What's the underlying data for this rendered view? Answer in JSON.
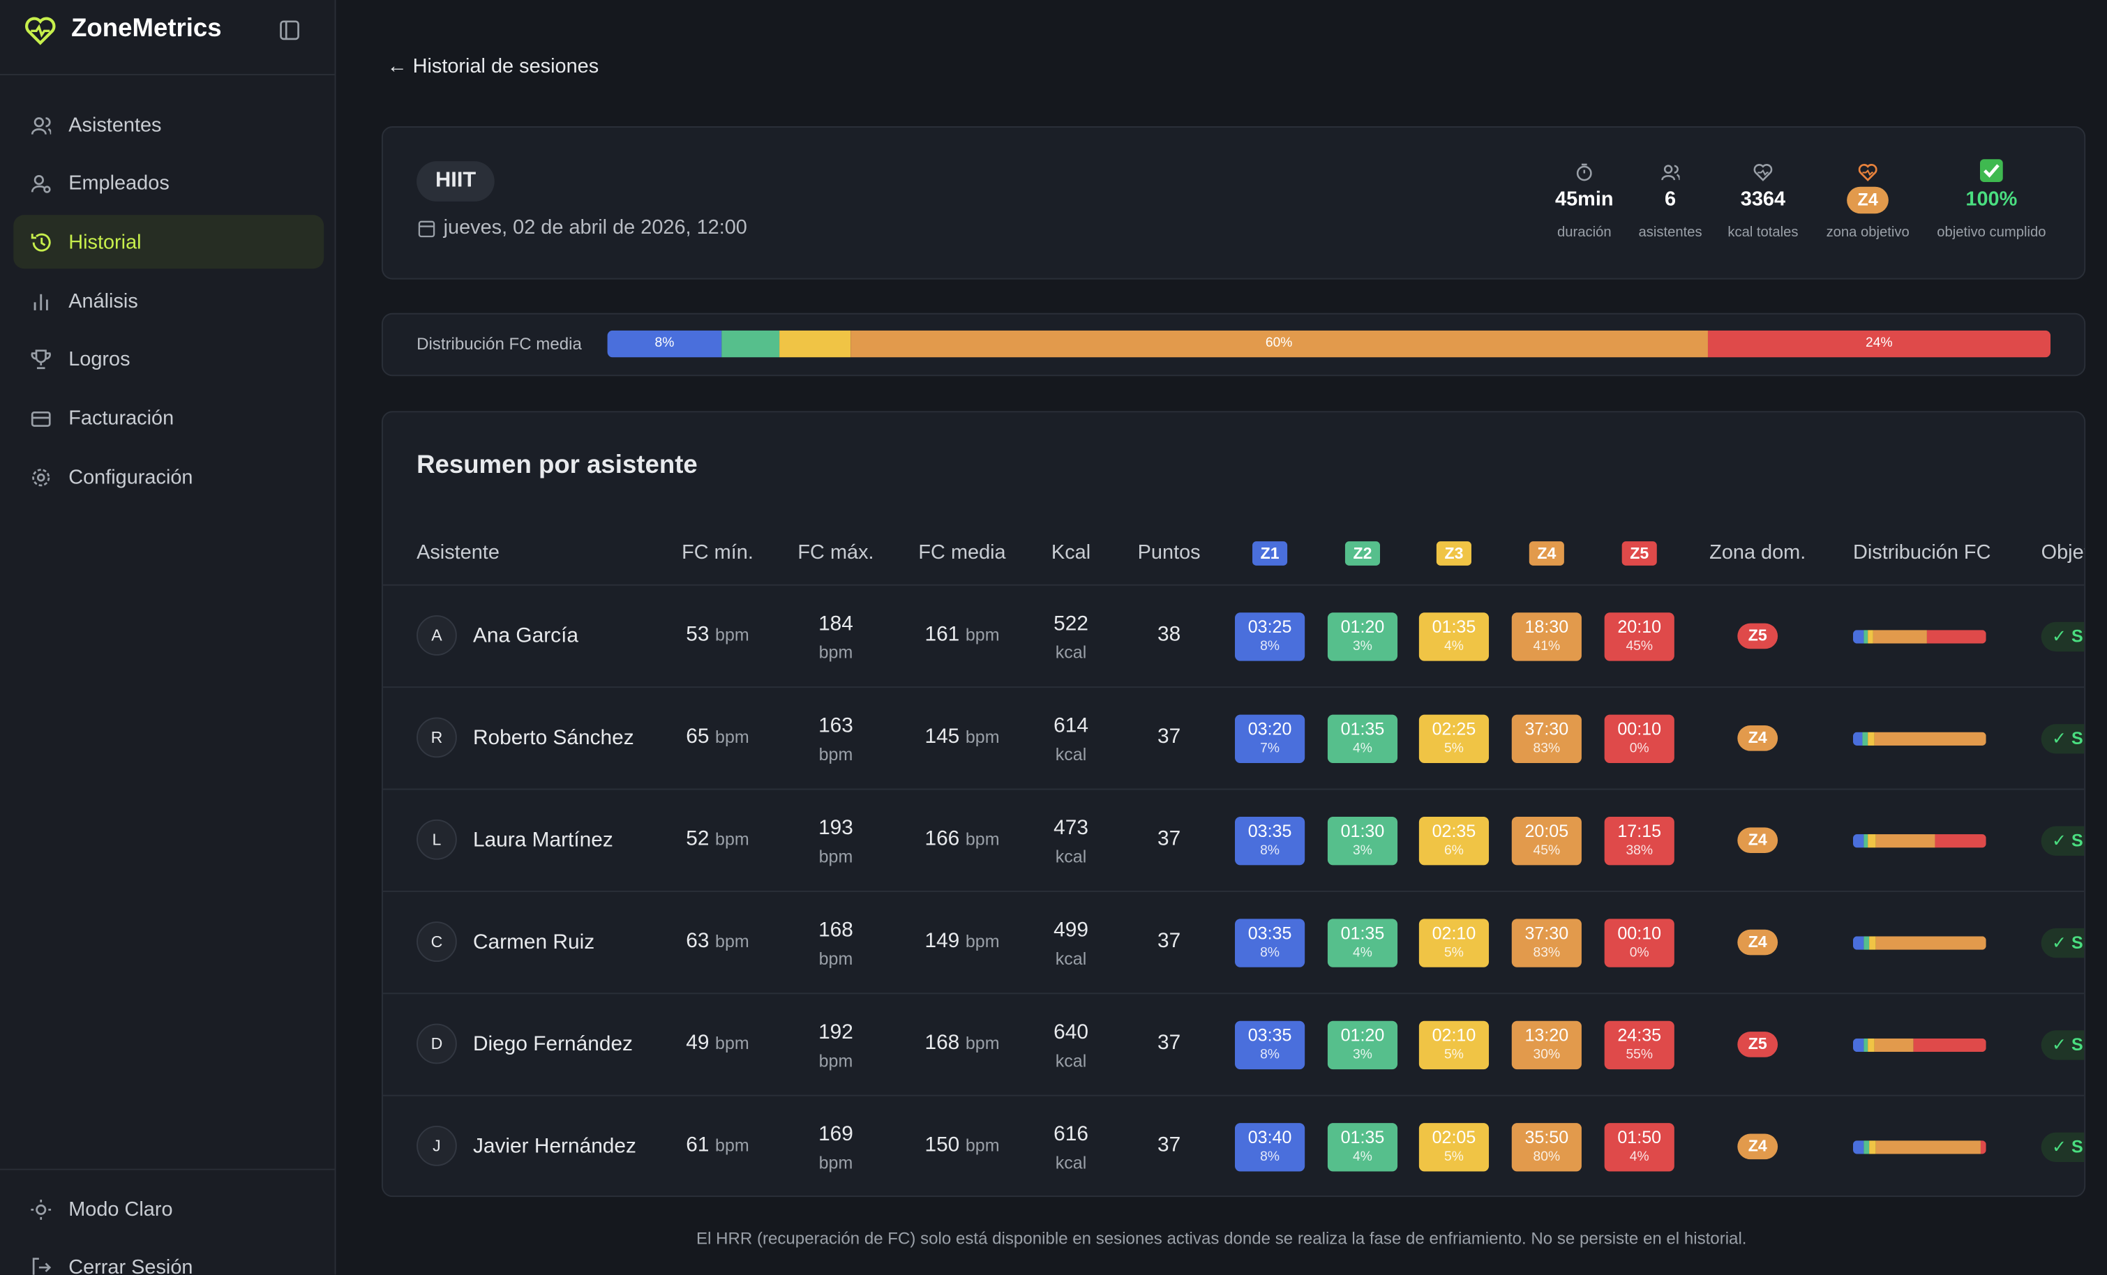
{
  "sidebar": {
    "brand": "ZoneMetrics",
    "nav": [
      "Asistentes",
      "Empleados",
      "Historial",
      "Análisis",
      "Logros",
      "Facturación",
      "Configuración"
    ],
    "footer": [
      "Modo Claro",
      "Cerrar Sesión"
    ]
  },
  "header": {
    "back": "← Historial de sesiones"
  },
  "session": {
    "type": "HIIT",
    "date": "jueves, 02 de abril de 2026, 12:00",
    "stats": [
      {
        "value": "45min",
        "label": "duración"
      },
      {
        "value": "6",
        "label": "asistentes"
      },
      {
        "value": "3364",
        "label": "kcal totales"
      },
      {
        "value": "Z4",
        "label": "zona objetivo"
      },
      {
        "value": "100%",
        "label": "objetivo cumplido"
      }
    ]
  },
  "distribution": {
    "label": "Distribución FC media",
    "segments": [
      {
        "value": 8,
        "label": "8%"
      },
      {
        "value": 4
      },
      {
        "value": 5
      },
      {
        "value": 60,
        "label": "60%"
      },
      {
        "value": 24,
        "label": "24%"
      }
    ]
  },
  "table": {
    "title": "Resumen por asistente",
    "columns": [
      "Asistente",
      "FC mín.",
      "FC máx.",
      "FC media",
      "Kcal",
      "Puntos",
      "Z1",
      "Z2",
      "Z3",
      "Z4",
      "Z5",
      "Zona dom.",
      "Distribución FC",
      "Objetivo"
    ],
    "units": {
      "bpm": "bpm",
      "kcal": "kcal"
    },
    "rows": [
      {
        "initial": "A",
        "name": "Ana García",
        "fc_min": 53,
        "fc_max": 184,
        "fc_avg": 161,
        "kcal": 522,
        "points": 38,
        "zones": [
          {
            "time": "03:25",
            "pct": "8%"
          },
          {
            "time": "01:20",
            "pct": "3%"
          },
          {
            "time": "01:35",
            "pct": "4%"
          },
          {
            "time": "18:30",
            "pct": "41%"
          },
          {
            "time": "20:10",
            "pct": "45%"
          }
        ],
        "dominant": "Z5",
        "goal": "✓ Sí"
      },
      {
        "initial": "R",
        "name": "Roberto Sánchez",
        "fc_min": 65,
        "fc_max": 163,
        "fc_avg": 145,
        "kcal": 614,
        "points": 37,
        "zones": [
          {
            "time": "03:20",
            "pct": "7%"
          },
          {
            "time": "01:35",
            "pct": "4%"
          },
          {
            "time": "02:25",
            "pct": "5%"
          },
          {
            "time": "37:30",
            "pct": "83%"
          },
          {
            "time": "00:10",
            "pct": "0%"
          }
        ],
        "dominant": "Z4",
        "goal": "✓ Sí"
      },
      {
        "initial": "L",
        "name": "Laura Martínez",
        "fc_min": 52,
        "fc_max": 193,
        "fc_avg": 166,
        "kcal": 473,
        "points": 37,
        "zones": [
          {
            "time": "03:35",
            "pct": "8%"
          },
          {
            "time": "01:30",
            "pct": "3%"
          },
          {
            "time": "02:35",
            "pct": "6%"
          },
          {
            "time": "20:05",
            "pct": "45%"
          },
          {
            "time": "17:15",
            "pct": "38%"
          }
        ],
        "dominant": "Z4",
        "goal": "✓ Sí"
      },
      {
        "initial": "C",
        "name": "Carmen Ruiz",
        "fc_min": 63,
        "fc_max": 168,
        "fc_avg": 149,
        "kcal": 499,
        "points": 37,
        "zones": [
          {
            "time": "03:35",
            "pct": "8%"
          },
          {
            "time": "01:35",
            "pct": "4%"
          },
          {
            "time": "02:10",
            "pct": "5%"
          },
          {
            "time": "37:30",
            "pct": "83%"
          },
          {
            "time": "00:10",
            "pct": "0%"
          }
        ],
        "dominant": "Z4",
        "goal": "✓ Sí"
      },
      {
        "initial": "D",
        "name": "Diego Fernández",
        "fc_min": 49,
        "fc_max": 192,
        "fc_avg": 168,
        "kcal": 640,
        "points": 37,
        "zones": [
          {
            "time": "03:35",
            "pct": "8%"
          },
          {
            "time": "01:20",
            "pct": "3%"
          },
          {
            "time": "02:10",
            "pct": "5%"
          },
          {
            "time": "13:20",
            "pct": "30%"
          },
          {
            "time": "24:35",
            "pct": "55%"
          }
        ],
        "dominant": "Z5",
        "goal": "✓ Sí"
      },
      {
        "initial": "J",
        "name": "Javier Hernández",
        "fc_min": 61,
        "fc_max": 169,
        "fc_avg": 150,
        "kcal": 616,
        "points": 37,
        "zones": [
          {
            "time": "03:40",
            "pct": "8%"
          },
          {
            "time": "01:35",
            "pct": "4%"
          },
          {
            "time": "02:05",
            "pct": "5%"
          },
          {
            "time": "35:50",
            "pct": "80%"
          },
          {
            "time": "01:50",
            "pct": "4%"
          }
        ],
        "dominant": "Z4",
        "goal": "✓ Sí"
      }
    ]
  },
  "note": "El HRR (recuperación de FC) solo está disponible en sesiones activas donde se realiza la fase de enfriamiento. No se persiste en el historial."
}
